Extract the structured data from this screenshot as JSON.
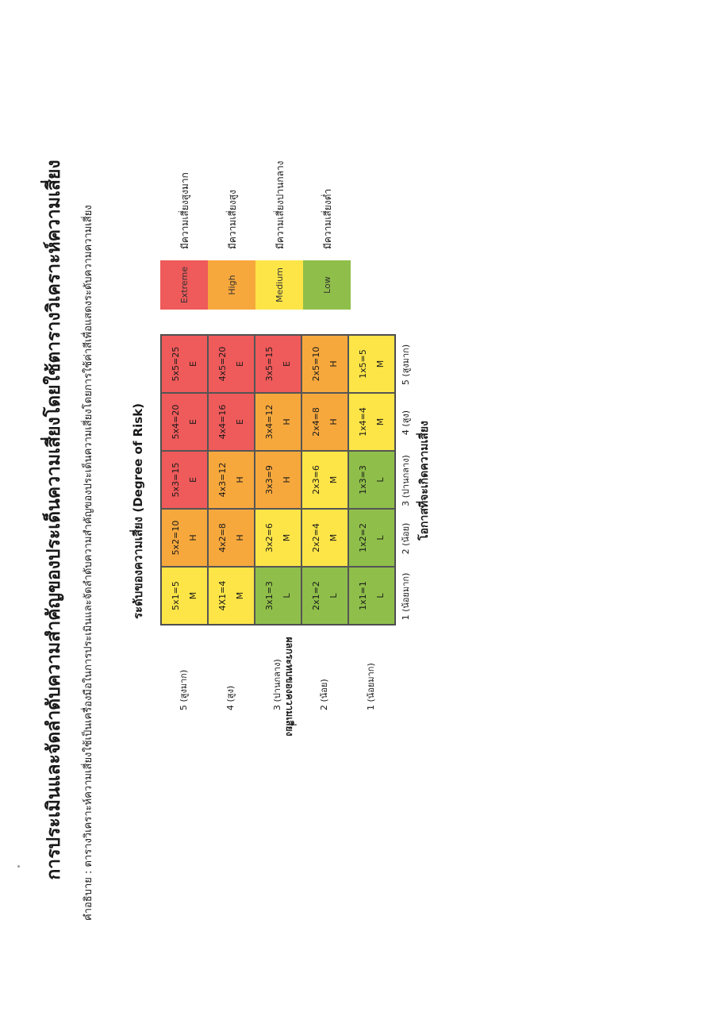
{
  "title": "การประเมินและจัดลำดับความสำคัญของประเด็นความเสี่ยงโดยใช้ตารางวิเคราะห์ความเสี่ยง",
  "subtitle": "คำอธิบาย : ตารางวิเคราะห์ความเสี่ยงใช้เป็นเครื่องมือในการประเมินและจัดลำดับความสำคัญของประเด็นความเสี่ยงโดยการใช้ค่าสีเพื่อแสดงระดับความความเสี่ยง",
  "matrix_title": "ระดับของความเสี่ยง (Degree of Risk)",
  "y_axis_label": "ผลกระทบของความเสี่ยง",
  "x_axis_label": "โอกาสที่จะเกิดความเสี่ยง",
  "y_labels": [
    "5 (สูงมาก)",
    "4 (สูง)",
    "3 (ปานกลาง)",
    "2 (น้อย)",
    "1 (น้อยมาก)"
  ],
  "x_labels": [
    "1 (น้อยมาก)",
    "2 (น้อย)",
    "3 (ปานกลาง)",
    "4 (สูง)",
    "5 (สูงมาก)"
  ],
  "colors": {
    "L": "#8fbf4a",
    "M": "#fde548",
    "H": "#f7a83d",
    "E": "#ef5a5a"
  },
  "rows": [
    [
      {
        "calc": "5x1=5",
        "level": "M"
      },
      {
        "calc": "5x2=10",
        "level": "H"
      },
      {
        "calc": "5x3=15",
        "level": "E"
      },
      {
        "calc": "5x4=20",
        "level": "E"
      },
      {
        "calc": "5x5=25",
        "level": "E"
      }
    ],
    [
      {
        "calc": "4X1=4",
        "level": "M"
      },
      {
        "calc": "4x2=8",
        "level": "H"
      },
      {
        "calc": "4x3=12",
        "level": "H"
      },
      {
        "calc": "4x4=16",
        "level": "E"
      },
      {
        "calc": "4x5=20",
        "level": "E"
      }
    ],
    [
      {
        "calc": "3x1=3",
        "level": "L"
      },
      {
        "calc": "3x2=6",
        "level": "M"
      },
      {
        "calc": "3x3=9",
        "level": "H"
      },
      {
        "calc": "3x4=12",
        "level": "H"
      },
      {
        "calc": "3x5=15",
        "level": "E"
      }
    ],
    [
      {
        "calc": "2x1=2",
        "level": "L"
      },
      {
        "calc": "2x2=4",
        "level": "M"
      },
      {
        "calc": "2x3=6",
        "level": "M"
      },
      {
        "calc": "2x4=8",
        "level": "H"
      },
      {
        "calc": "2x5=10",
        "level": "H"
      }
    ],
    [
      {
        "calc": "1x1=1",
        "level": "L"
      },
      {
        "calc": "1x2=2",
        "level": "L"
      },
      {
        "calc": "1x3=3",
        "level": "L"
      },
      {
        "calc": "1x4=4",
        "level": "M"
      },
      {
        "calc": "1x5=5",
        "level": "M"
      }
    ]
  ],
  "legend": [
    {
      "label": "Extreme",
      "description": "มีความเสี่ยงสูงมาก",
      "color": "#ef5a5a"
    },
    {
      "label": "High",
      "description": "มีความเสี่ยงสูง",
      "color": "#f7a83d"
    },
    {
      "label": "Medium",
      "description": "มีความเสี่ยงปานกลาง",
      "color": "#fde548"
    },
    {
      "label": "Low",
      "description": "มีความเสี่ยงต่ำ",
      "color": "#8fbf4a"
    }
  ]
}
